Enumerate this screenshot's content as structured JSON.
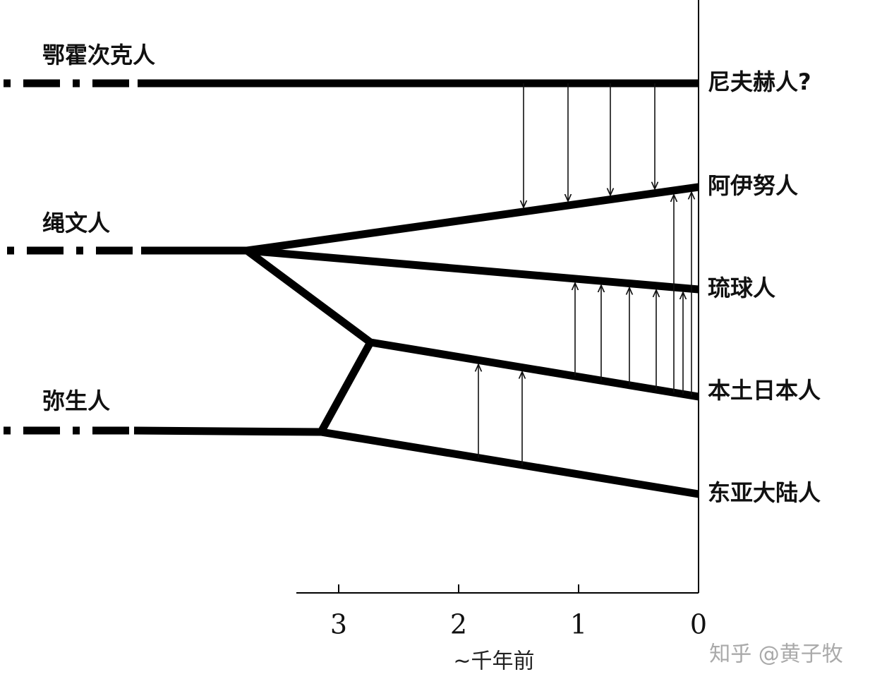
{
  "populations_left": [
    "鄂霍次克人",
    "绳文人",
    "弥生人"
  ],
  "populations_right": [
    "尼夫赫人?",
    "阿伊努人",
    "琉球人",
    "本土日本人",
    "东亚大陆人"
  ],
  "axis": {
    "ticks": [
      3,
      2,
      1,
      0
    ],
    "label": "~千年前"
  },
  "watermark": "知乎 @黄子牧"
}
